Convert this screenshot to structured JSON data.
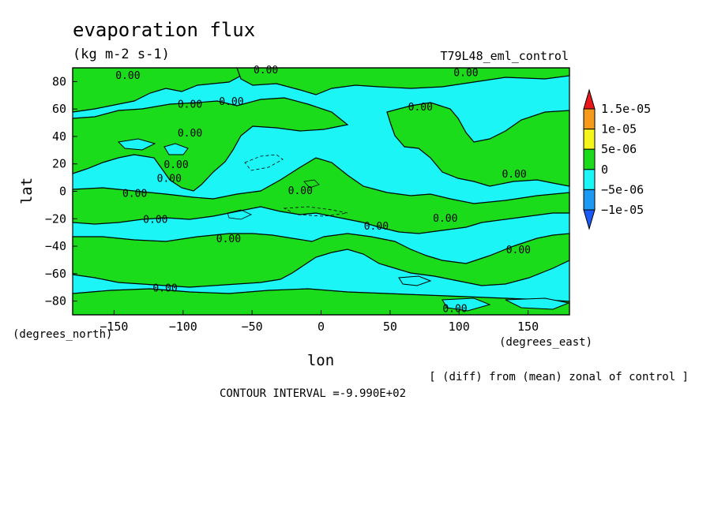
{
  "chart_data": {
    "type": "heatmap",
    "title": "evaporation flux",
    "subtitle": "(kg m-2 s-1)",
    "experiment": "T79L48_eml_control",
    "xlabel": "lon",
    "ylabel": "lat",
    "x_units": "(degrees_east)",
    "y_units": "(degrees_north)",
    "xlim": [
      -180,
      180
    ],
    "ylim": [
      -90,
      90
    ],
    "x_ticks": [
      -150,
      -100,
      -50,
      0,
      50,
      100,
      150
    ],
    "y_ticks": [
      80,
      60,
      40,
      20,
      0,
      -20,
      -40,
      -60,
      -80
    ],
    "colorbar": {
      "levels": [
        "1.5e-05",
        "1e-05",
        "5e-06",
        "0",
        "-5e-06",
        "-1e-05"
      ],
      "colors": [
        "#e8171b",
        "#f59a1b",
        "#f5f51b",
        "#1bdc1b",
        "#1bf5f5",
        "#1b9af5",
        "#1b5af5"
      ]
    },
    "contour_labels": [
      {
        "lon": -140,
        "lat": 82,
        "text": "0.00"
      },
      {
        "lon": -40,
        "lat": 86,
        "text": "0.00"
      },
      {
        "lon": 105,
        "lat": 84,
        "text": "0.00"
      },
      {
        "lon": -95,
        "lat": 61,
        "text": "0.00"
      },
      {
        "lon": -65,
        "lat": 63,
        "text": "0.00"
      },
      {
        "lon": 72,
        "lat": 59,
        "text": "0.00"
      },
      {
        "lon": -95,
        "lat": 40,
        "text": "0.00"
      },
      {
        "lon": -105,
        "lat": 17,
        "text": "0.00"
      },
      {
        "lon": -110,
        "lat": 7,
        "text": "0.00"
      },
      {
        "lon": -135,
        "lat": -4,
        "text": "0.00"
      },
      {
        "lon": -15,
        "lat": -2,
        "text": "0.00"
      },
      {
        "lon": 140,
        "lat": 10,
        "text": "0.00"
      },
      {
        "lon": -120,
        "lat": -23,
        "text": "0.00"
      },
      {
        "lon": 40,
        "lat": -28,
        "text": "0.00"
      },
      {
        "lon": 90,
        "lat": -22,
        "text": "0.00"
      },
      {
        "lon": -67,
        "lat": -37,
        "text": "0.00"
      },
      {
        "lon": 143,
        "lat": -45,
        "text": "0.00"
      },
      {
        "lon": -113,
        "lat": -73,
        "text": "0.00"
      },
      {
        "lon": 97,
        "lat": -88,
        "text": "0.00"
      }
    ],
    "contour_interval": "CONTOUR INTERVAL =-9.990E+02",
    "note": "[ (diff) from (mean) zonal of control ]"
  }
}
